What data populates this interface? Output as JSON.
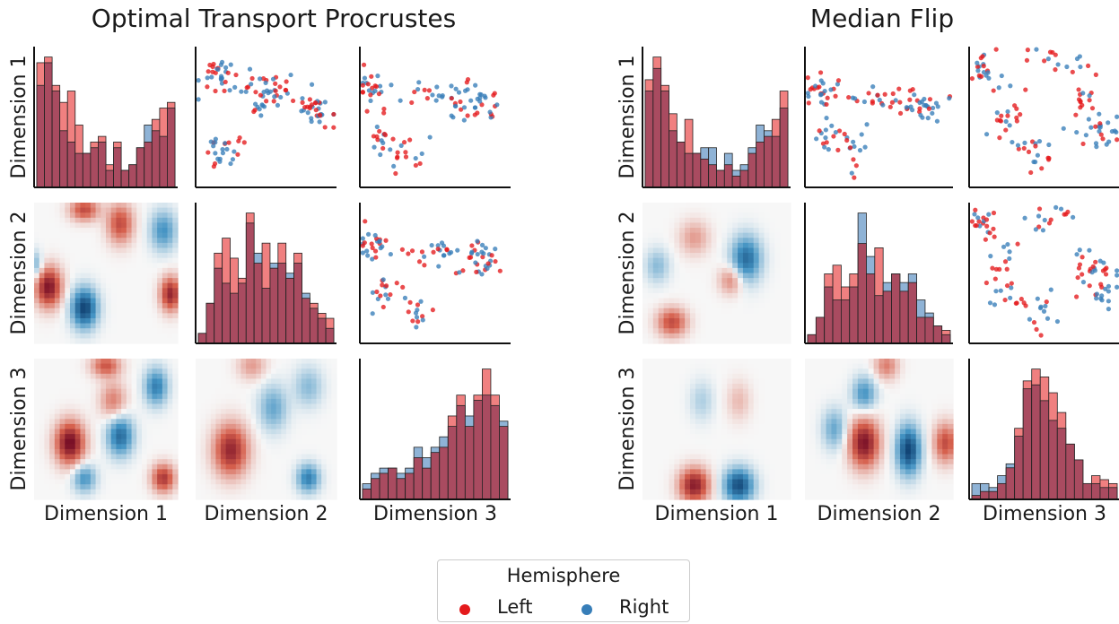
{
  "colors": {
    "left": "#e41a1c",
    "right": "#377eb8"
  },
  "chart_data": [
    {
      "type": "pairplot",
      "title": "Optimal Transport Procrustes",
      "dimension_labels": [
        "Dimension 1",
        "Dimension 2",
        "Dimension 3"
      ],
      "diagonal": "histogram",
      "upper": "scatter",
      "lower": "difference density",
      "histograms": {
        "dim1": {
          "left": [
            22,
            23,
            18,
            15,
            17,
            11,
            6,
            8,
            9,
            4,
            8,
            3,
            4,
            7,
            8,
            12,
            14,
            15
          ],
          "right": [
            18,
            22,
            17,
            10,
            8,
            6,
            6,
            7,
            8,
            3,
            7,
            3,
            4,
            7,
            11,
            10,
            9,
            14
          ]
        },
        "dim2": {
          "left": [
            2,
            8,
            18,
            21,
            17,
            13,
            26,
            16,
            20,
            15,
            20,
            13,
            18,
            9,
            8,
            6,
            5
          ],
          "right": [
            2,
            8,
            15,
            12,
            10,
            12,
            24,
            18,
            11,
            16,
            16,
            14,
            16,
            10,
            7,
            5,
            3
          ]
        },
        "dim3": {
          "left": [
            2,
            4,
            5,
            6,
            4,
            5,
            8,
            6,
            9,
            10,
            16,
            20,
            14,
            20,
            25,
            20,
            14
          ],
          "right": [
            3,
            5,
            6,
            6,
            5,
            6,
            10,
            8,
            10,
            12,
            14,
            18,
            16,
            19,
            20,
            18,
            15
          ]
        }
      }
    },
    {
      "type": "pairplot",
      "title": "Median Flip",
      "dimension_labels": [
        "Dimension 1",
        "Dimension 2",
        "Dimension 3"
      ],
      "diagonal": "histogram",
      "upper": "scatter",
      "lower": "difference density",
      "histograms": {
        "dim1": {
          "left": [
            19,
            23,
            18,
            13,
            8,
            12,
            6,
            5,
            4,
            3,
            4,
            2,
            3,
            6,
            8,
            9,
            12,
            17
          ],
          "right": [
            17,
            21,
            17,
            10,
            8,
            6,
            6,
            7,
            7,
            3,
            6,
            3,
            4,
            7,
            11,
            10,
            9,
            14
          ]
        },
        "dim2": {
          "left": [
            2,
            6,
            16,
            18,
            13,
            16,
            23,
            16,
            22,
            12,
            16,
            12,
            14,
            6,
            6,
            4,
            3
          ],
          "right": [
            2,
            6,
            13,
            10,
            10,
            13,
            30,
            20,
            11,
            14,
            16,
            14,
            16,
            10,
            7,
            4,
            2
          ]
        },
        "dim3": {
          "left": [
            1,
            2,
            2,
            4,
            8,
            18,
            30,
            33,
            31,
            27,
            22,
            14,
            10,
            4,
            6,
            5,
            4
          ],
          "right": [
            4,
            4,
            3,
            6,
            9,
            16,
            28,
            29,
            25,
            20,
            18,
            14,
            10,
            4,
            4,
            3,
            3
          ]
        }
      }
    }
  ],
  "legend": {
    "title": "Hemisphere",
    "left_label": "Left",
    "right_label": "Right"
  }
}
